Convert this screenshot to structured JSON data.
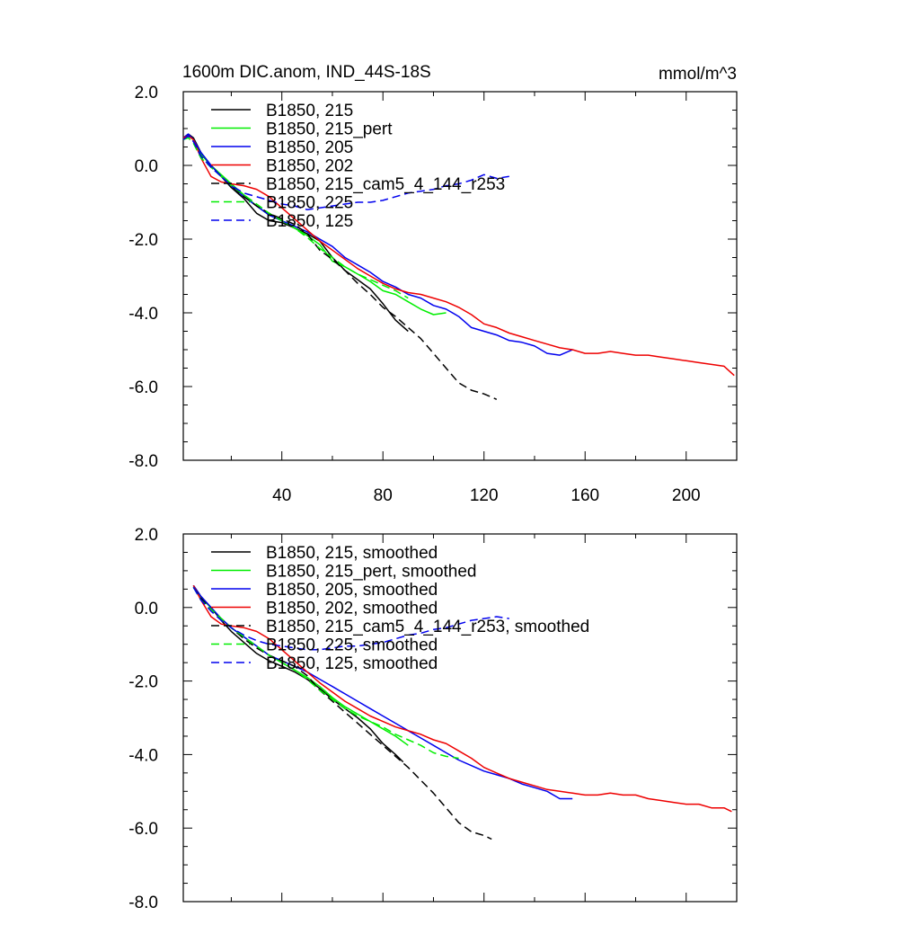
{
  "panels": [
    {
      "title_left": "1600m DIC.anom, IND_44S-18S",
      "title_right": "mmol/m^3"
    },
    {
      "title_left": "",
      "title_right": ""
    }
  ],
  "chart_data": [
    {
      "type": "line",
      "title": "1600m DIC.anom, IND_44S-18S",
      "units": "mmol/m^3",
      "xlim": [
        1,
        220
      ],
      "ylim": [
        -8.0,
        2.0
      ],
      "x_ticks": [
        40,
        80,
        120,
        160,
        200
      ],
      "x_tick_labels": [
        "40",
        "80",
        "120",
        "160",
        "200"
      ],
      "y_ticks": [
        2.0,
        0.0,
        -2.0,
        -4.0,
        -6.0,
        -8.0
      ],
      "y_tick_labels": [
        "2.0",
        "0.0",
        "-2.0",
        "-4.0",
        "-6.0",
        "-8.0"
      ],
      "legend_position": "top-left",
      "series": [
        {
          "name": "B1850, 215",
          "color": "#000000",
          "dash": "solid",
          "x": [
            1,
            3,
            5,
            8,
            12,
            16,
            20,
            25,
            30,
            35,
            40,
            45,
            50,
            55,
            60,
            65,
            70,
            75,
            80,
            85,
            90
          ],
          "y": [
            0.75,
            0.85,
            0.75,
            0.35,
            0.0,
            -0.3,
            -0.6,
            -0.9,
            -1.3,
            -1.5,
            -1.55,
            -1.7,
            -1.85,
            -2.05,
            -2.5,
            -2.85,
            -3.1,
            -3.35,
            -3.75,
            -4.2,
            -4.5
          ]
        },
        {
          "name": "B1850, 215_pert",
          "color": "#00ee00",
          "dash": "solid",
          "x": [
            1,
            3,
            5,
            8,
            12,
            16,
            20,
            25,
            30,
            35,
            40,
            45,
            50,
            55,
            60,
            65,
            70,
            75,
            80,
            85,
            90,
            95,
            100,
            105
          ],
          "y": [
            0.7,
            0.8,
            0.7,
            0.3,
            0.0,
            -0.25,
            -0.5,
            -0.8,
            -1.1,
            -1.35,
            -1.5,
            -1.7,
            -1.9,
            -2.15,
            -2.6,
            -2.75,
            -2.95,
            -3.15,
            -3.4,
            -3.5,
            -3.7,
            -3.9,
            -4.05,
            -4.0
          ]
        },
        {
          "name": "B1850, 205",
          "color": "#0000ee",
          "dash": "solid",
          "x": [
            1,
            3,
            5,
            8,
            12,
            16,
            20,
            25,
            30,
            35,
            40,
            45,
            50,
            55,
            60,
            65,
            70,
            75,
            80,
            85,
            90,
            95,
            100,
            105,
            110,
            115,
            120,
            125,
            130,
            135,
            140,
            145,
            150,
            155
          ],
          "y": [
            0.75,
            0.85,
            0.7,
            0.35,
            0.0,
            -0.3,
            -0.55,
            -0.85,
            -1.1,
            -1.35,
            -1.5,
            -1.65,
            -1.8,
            -2.0,
            -2.2,
            -2.5,
            -2.7,
            -2.9,
            -3.15,
            -3.3,
            -3.5,
            -3.6,
            -3.8,
            -3.9,
            -4.1,
            -4.4,
            -4.5,
            -4.6,
            -4.75,
            -4.8,
            -4.9,
            -5.1,
            -5.15,
            -5.0
          ]
        },
        {
          "name": "B1850, 202",
          "color": "#ee0000",
          "dash": "solid",
          "x": [
            1,
            3,
            5,
            8,
            12,
            16,
            20,
            25,
            30,
            35,
            40,
            45,
            50,
            55,
            60,
            65,
            70,
            75,
            80,
            85,
            90,
            95,
            100,
            105,
            110,
            115,
            120,
            125,
            130,
            135,
            140,
            145,
            150,
            155,
            160,
            165,
            170,
            175,
            180,
            185,
            190,
            195,
            200,
            205,
            210,
            215,
            219
          ],
          "y": [
            0.75,
            0.8,
            0.7,
            0.2,
            -0.3,
            -0.45,
            -0.5,
            -0.55,
            -0.65,
            -0.85,
            -1.15,
            -1.45,
            -1.75,
            -2.05,
            -2.3,
            -2.55,
            -2.8,
            -3.0,
            -3.2,
            -3.35,
            -3.45,
            -3.5,
            -3.6,
            -3.7,
            -3.85,
            -4.05,
            -4.3,
            -4.4,
            -4.55,
            -4.65,
            -4.75,
            -4.85,
            -4.95,
            -5.0,
            -5.1,
            -5.1,
            -5.05,
            -5.1,
            -5.15,
            -5.15,
            -5.2,
            -5.25,
            -5.3,
            -5.35,
            -5.4,
            -5.45,
            -5.7
          ]
        },
        {
          "name": "B1850, 215_cam5_4_144_r253",
          "color": "#000000",
          "dash": "dashed",
          "x": [
            1,
            3,
            5,
            8,
            12,
            16,
            20,
            25,
            30,
            35,
            40,
            45,
            50,
            55,
            60,
            65,
            70,
            75,
            80,
            85,
            90,
            95,
            100,
            105,
            110,
            115,
            120,
            125
          ],
          "y": [
            0.7,
            0.8,
            0.65,
            0.25,
            -0.05,
            -0.3,
            -0.55,
            -0.85,
            -1.1,
            -1.3,
            -1.45,
            -1.6,
            -1.85,
            -2.3,
            -2.55,
            -2.85,
            -3.2,
            -3.5,
            -3.85,
            -4.1,
            -4.4,
            -4.7,
            -5.1,
            -5.5,
            -5.9,
            -6.1,
            -6.2,
            -6.35
          ]
        },
        {
          "name": "B1850, 225",
          "color": "#00ee00",
          "dash": "dashed",
          "x": [
            1,
            3,
            5,
            8,
            12,
            16,
            20,
            25,
            30,
            35,
            40,
            45,
            50,
            55,
            60,
            65,
            70,
            75,
            80,
            85,
            90
          ],
          "y": [
            0.7,
            0.75,
            0.6,
            0.2,
            -0.05,
            -0.3,
            -0.55,
            -0.8,
            -1.05,
            -1.3,
            -1.5,
            -1.7,
            -1.95,
            -2.25,
            -2.5,
            -2.75,
            -2.95,
            -3.1,
            -3.25,
            -3.4,
            -3.6
          ]
        },
        {
          "name": "B1850, 125",
          "color": "#0000ee",
          "dash": "dashed",
          "x": [
            1,
            3,
            5,
            8,
            12,
            16,
            20,
            25,
            30,
            35,
            40,
            45,
            50,
            55,
            60,
            65,
            70,
            75,
            80,
            85,
            90,
            95,
            100,
            105,
            110,
            115,
            120,
            125,
            130
          ],
          "y": [
            0.7,
            0.8,
            0.65,
            0.25,
            -0.05,
            -0.3,
            -0.55,
            -0.75,
            -0.85,
            -0.95,
            -1.05,
            -1.1,
            -1.2,
            -1.15,
            -1.1,
            -1.05,
            -1.0,
            -1.0,
            -0.95,
            -0.85,
            -0.75,
            -0.7,
            -0.65,
            -0.55,
            -0.5,
            -0.4,
            -0.25,
            -0.35,
            -0.3
          ]
        }
      ]
    },
    {
      "type": "line",
      "xlim": [
        1,
        220
      ],
      "ylim": [
        -8.0,
        2.0
      ],
      "x_ticks": [
        40,
        80,
        120,
        160,
        200
      ],
      "y_ticks": [
        2.0,
        0.0,
        -2.0,
        -4.0,
        -6.0,
        -8.0
      ],
      "y_tick_labels": [
        "2.0",
        "0.0",
        "-2.0",
        "-4.0",
        "-6.0",
        "-8.0"
      ],
      "legend_position": "top-left",
      "series": [
        {
          "name": "B1850, 215, smoothed",
          "color": "#000000",
          "dash": "solid",
          "x": [
            5,
            8,
            12,
            16,
            20,
            25,
            30,
            35,
            40,
            45,
            50,
            55,
            60,
            65,
            70,
            75,
            80,
            85,
            88
          ],
          "y": [
            0.6,
            0.3,
            0.0,
            -0.35,
            -0.65,
            -0.95,
            -1.25,
            -1.45,
            -1.6,
            -1.75,
            -1.95,
            -2.2,
            -2.5,
            -2.75,
            -3.0,
            -3.3,
            -3.7,
            -4.0,
            -4.2
          ]
        },
        {
          "name": "B1850, 215_pert, smoothed",
          "color": "#00ee00",
          "dash": "solid",
          "x": [
            5,
            8,
            12,
            16,
            20,
            25,
            30,
            35,
            40,
            45,
            50,
            55,
            60,
            65,
            70,
            75,
            80,
            85,
            90
          ],
          "y": [
            0.55,
            0.25,
            0.0,
            -0.3,
            -0.55,
            -0.8,
            -1.05,
            -1.3,
            -1.5,
            -1.7,
            -1.9,
            -2.15,
            -2.45,
            -2.7,
            -2.9,
            -3.1,
            -3.3,
            -3.5,
            -3.75
          ]
        },
        {
          "name": "B1850, 205, smoothed",
          "color": "#0000ee",
          "dash": "solid",
          "x": [
            5,
            8,
            12,
            16,
            20,
            25,
            30,
            35,
            40,
            45,
            50,
            55,
            60,
            65,
            70,
            75,
            80,
            85,
            90,
            95,
            100,
            105,
            110,
            115,
            120,
            125,
            130,
            135,
            140,
            145,
            150,
            155
          ],
          "y": [
            0.6,
            0.3,
            0.0,
            -0.3,
            -0.55,
            -0.8,
            -1.05,
            -1.3,
            -1.45,
            -1.6,
            -1.75,
            -1.95,
            -2.15,
            -2.35,
            -2.55,
            -2.75,
            -2.95,
            -3.15,
            -3.35,
            -3.55,
            -3.75,
            -3.95,
            -4.15,
            -4.3,
            -4.45,
            -4.55,
            -4.65,
            -4.8,
            -4.9,
            -5.0,
            -5.2,
            -5.2
          ]
        },
        {
          "name": "B1850, 202, smoothed",
          "color": "#ee0000",
          "dash": "solid",
          "x": [
            5,
            8,
            12,
            16,
            20,
            25,
            30,
            35,
            40,
            45,
            50,
            55,
            60,
            65,
            70,
            75,
            80,
            85,
            90,
            95,
            100,
            105,
            110,
            115,
            120,
            125,
            130,
            135,
            140,
            145,
            150,
            155,
            160,
            165,
            170,
            175,
            180,
            185,
            190,
            195,
            200,
            205,
            210,
            215,
            218
          ],
          "y": [
            0.6,
            0.2,
            -0.25,
            -0.45,
            -0.5,
            -0.55,
            -0.65,
            -0.85,
            -1.15,
            -1.45,
            -1.75,
            -2.05,
            -2.3,
            -2.55,
            -2.75,
            -2.95,
            -3.1,
            -3.25,
            -3.35,
            -3.45,
            -3.6,
            -3.7,
            -3.9,
            -4.1,
            -4.35,
            -4.5,
            -4.65,
            -4.75,
            -4.85,
            -4.95,
            -5.0,
            -5.05,
            -5.1,
            -5.1,
            -5.05,
            -5.1,
            -5.1,
            -5.2,
            -5.25,
            -5.3,
            -5.35,
            -5.35,
            -5.45,
            -5.45,
            -5.55
          ]
        },
        {
          "name": "B1850, 215_cam5_4_144_r253, smoothed",
          "color": "#000000",
          "dash": "dashed",
          "x": [
            5,
            8,
            12,
            16,
            20,
            25,
            30,
            35,
            40,
            45,
            50,
            55,
            60,
            65,
            70,
            75,
            80,
            85,
            90,
            95,
            100,
            105,
            110,
            115,
            120,
            123
          ],
          "y": [
            0.55,
            0.25,
            -0.05,
            -0.3,
            -0.55,
            -0.85,
            -1.1,
            -1.3,
            -1.45,
            -1.6,
            -1.85,
            -2.25,
            -2.55,
            -2.85,
            -3.15,
            -3.45,
            -3.75,
            -4.05,
            -4.35,
            -4.7,
            -5.05,
            -5.45,
            -5.85,
            -6.1,
            -6.2,
            -6.3
          ]
        },
        {
          "name": "B1850, 225, smoothed",
          "color": "#00ee00",
          "dash": "dashed",
          "x": [
            5,
            8,
            12,
            16,
            20,
            25,
            30,
            35,
            40,
            45,
            50,
            55,
            60,
            65,
            70,
            75,
            80,
            85,
            90,
            95,
            100,
            105,
            110
          ],
          "y": [
            0.55,
            0.2,
            -0.05,
            -0.3,
            -0.55,
            -0.8,
            -1.05,
            -1.3,
            -1.5,
            -1.7,
            -1.95,
            -2.25,
            -2.5,
            -2.75,
            -2.95,
            -3.1,
            -3.25,
            -3.45,
            -3.6,
            -3.75,
            -3.95,
            -4.05,
            -4.1
          ]
        },
        {
          "name": "B1850, 125, smoothed",
          "color": "#0000ee",
          "dash": "dashed",
          "x": [
            5,
            8,
            12,
            16,
            20,
            25,
            30,
            35,
            40,
            45,
            50,
            55,
            60,
            65,
            70,
            75,
            80,
            85,
            90,
            95,
            100,
            105,
            110,
            115,
            120,
            125,
            130
          ],
          "y": [
            0.55,
            0.2,
            -0.1,
            -0.35,
            -0.55,
            -0.75,
            -0.9,
            -1.0,
            -1.05,
            -1.1,
            -1.15,
            -1.15,
            -1.1,
            -1.05,
            -1.05,
            -1.0,
            -0.95,
            -0.85,
            -0.75,
            -0.7,
            -0.6,
            -0.55,
            -0.45,
            -0.35,
            -0.3,
            -0.25,
            -0.3
          ]
        }
      ]
    }
  ]
}
